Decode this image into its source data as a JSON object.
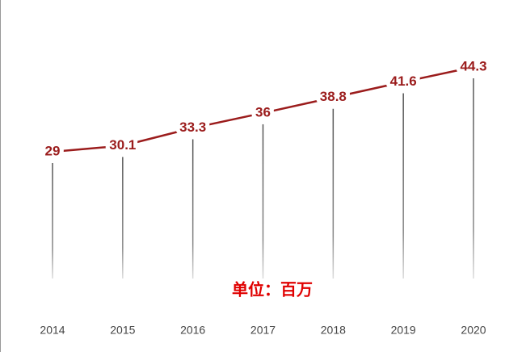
{
  "chart_data": {
    "type": "line",
    "categories": [
      "2014",
      "2015",
      "2016",
      "2017",
      "2018",
      "2019",
      "2020"
    ],
    "values": [
      29,
      30.1,
      33.3,
      36,
      38.8,
      41.6,
      44.3
    ],
    "color": "#9b1c1c",
    "annotation": "单位：百万"
  }
}
